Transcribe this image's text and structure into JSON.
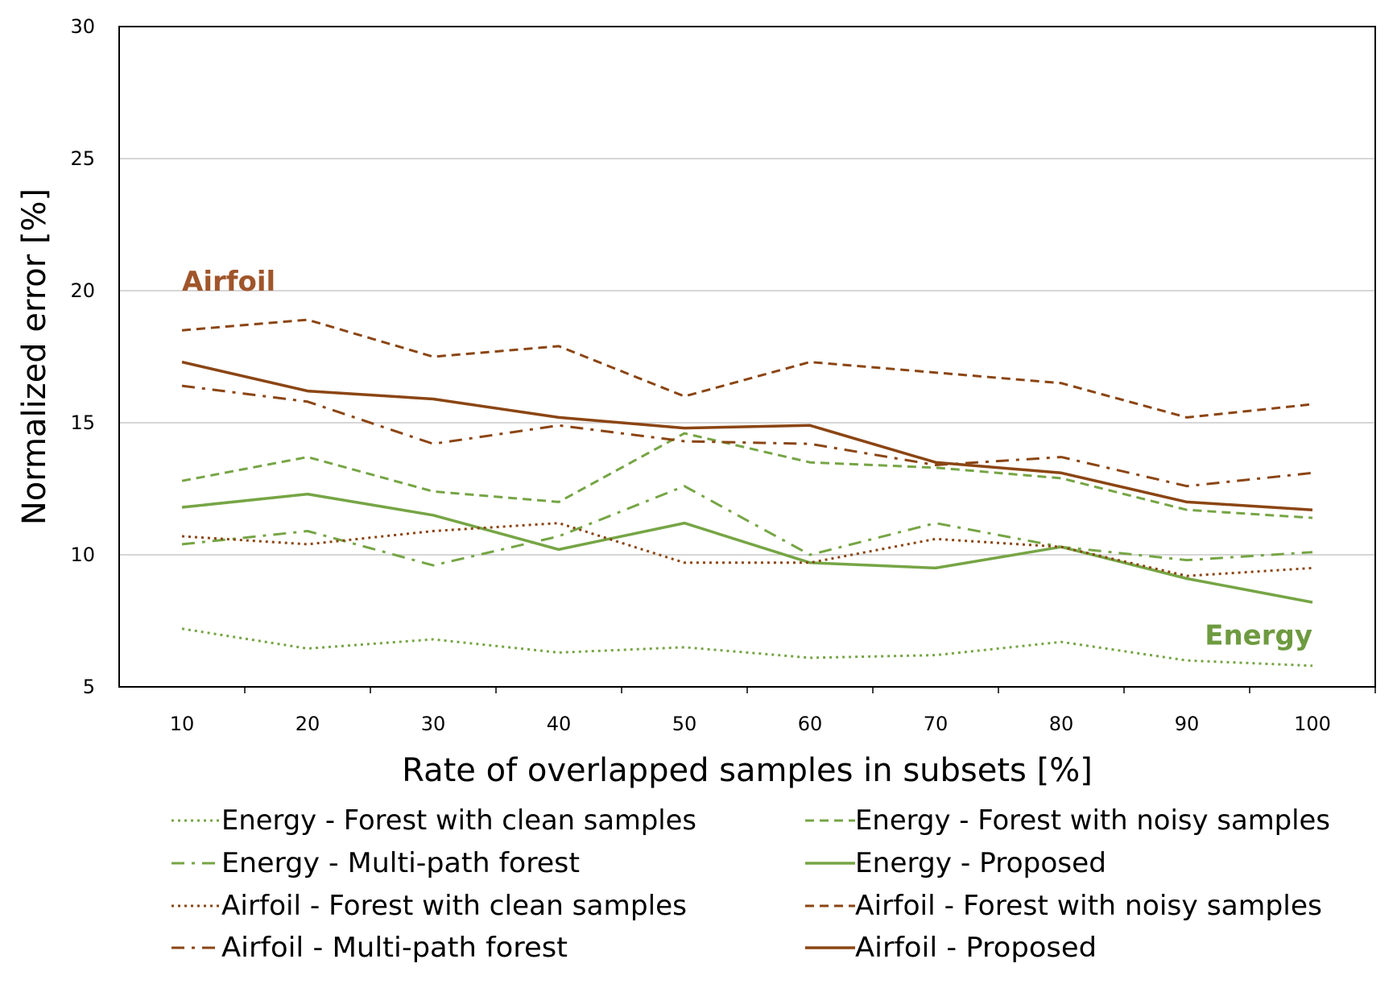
{
  "chart_data": {
    "type": "line",
    "xlabel": "Rate of overlapped samples in subsets [%]",
    "ylabel": "Normalized error [%]",
    "ylim": [
      5,
      30
    ],
    "yticks": [
      5,
      10,
      15,
      20,
      25,
      30
    ],
    "categories": [
      "10",
      "20",
      "30",
      "40",
      "50",
      "60",
      "70",
      "80",
      "90",
      "100"
    ],
    "grid": "horizontal",
    "legend_position": "bottom",
    "series": [
      {
        "name": "Energy - Forest with clean samples",
        "color": "#76a545",
        "dash": "dotted",
        "values": [
          7.2,
          6.45,
          6.8,
          6.3,
          6.5,
          6.1,
          6.2,
          6.7,
          6.0,
          5.8
        ]
      },
      {
        "name": "Energy - Forest with noisy samples",
        "color": "#76a545",
        "dash": "dashed",
        "values": [
          12.8,
          13.7,
          12.4,
          12.0,
          14.6,
          13.5,
          13.3,
          12.9,
          11.7,
          11.4
        ]
      },
      {
        "name": "Energy - Multi-path forest",
        "color": "#76a545",
        "dash": "dashdot",
        "values": [
          10.4,
          10.9,
          9.6,
          10.7,
          12.6,
          10.0,
          11.2,
          10.3,
          9.8,
          10.1
        ]
      },
      {
        "name": "Energy - Proposed",
        "color": "#76a545",
        "dash": "solid",
        "values": [
          11.8,
          12.3,
          11.5,
          10.2,
          11.2,
          9.7,
          9.5,
          10.3,
          9.1,
          8.2
        ]
      },
      {
        "name": "Airfoil - Forest with clean samples",
        "color": "#8b4513",
        "dash": "dotted",
        "values": [
          10.7,
          10.4,
          10.9,
          11.2,
          9.7,
          9.7,
          10.6,
          10.3,
          9.2,
          9.5
        ]
      },
      {
        "name": "Airfoil - Forest with noisy samples",
        "color": "#8b4513",
        "dash": "dashed",
        "values": [
          18.5,
          18.9,
          17.5,
          17.9,
          16.0,
          17.3,
          16.9,
          16.5,
          15.2,
          15.7
        ]
      },
      {
        "name": "Airfoil - Multi-path forest",
        "color": "#8b4513",
        "dash": "dashdot",
        "values": [
          16.4,
          15.8,
          14.2,
          14.9,
          14.3,
          14.2,
          13.4,
          13.7,
          12.6,
          13.1
        ]
      },
      {
        "name": "Airfoil - Proposed",
        "color": "#8b4513",
        "dash": "solid",
        "values": [
          17.3,
          16.2,
          15.9,
          15.2,
          14.8,
          14.9,
          13.5,
          13.1,
          12.0,
          11.7
        ]
      }
    ],
    "annotations": [
      {
        "text": "Airfoil",
        "color": "#a0552a",
        "x": 10,
        "y": 20,
        "anchor": "start"
      },
      {
        "text": "Energy",
        "color": "#6e9a40",
        "x": 100,
        "y": 6.6,
        "anchor": "end"
      }
    ]
  }
}
